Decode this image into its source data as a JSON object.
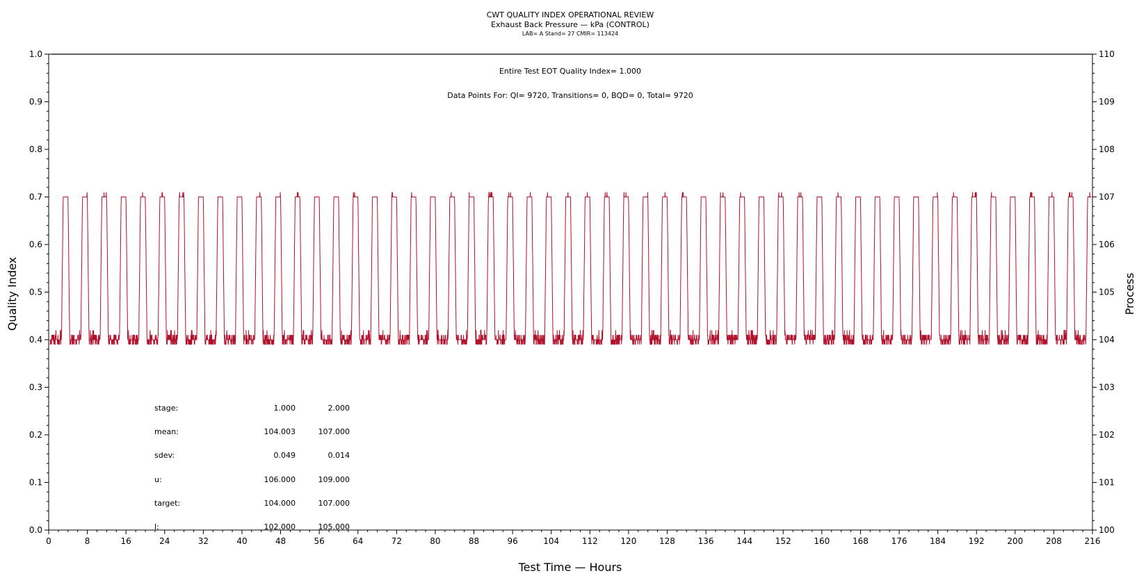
{
  "colors": {
    "series": "#b0102a",
    "frame": "#000000",
    "top_line": "#1a1a6e"
  },
  "chart_data": {
    "type": "line",
    "title": "CWT QUALITY INDEX OPERATIONAL REVIEW",
    "subtitle": "Exhaust Back Pressure — kPa (CONTROL)",
    "subtitle2": "LAB= A Stand= 27 CMIR= 113424",
    "xlabel": "Test Time — Hours",
    "ylabel_left": "Quality Index",
    "ylabel_right": "Process",
    "xlim": [
      0,
      216
    ],
    "ylim_left": [
      0.0,
      1.0
    ],
    "ylim_right": [
      100,
      110
    ],
    "x_ticks": [
      "0",
      "8",
      "16",
      "24",
      "32",
      "40",
      "48",
      "56",
      "64",
      "72",
      "80",
      "88",
      "96",
      "104",
      "112",
      "120",
      "128",
      "136",
      "144",
      "152",
      "160",
      "168",
      "176",
      "184",
      "192",
      "200",
      "208",
      "216"
    ],
    "y_left_ticks": [
      "0.0",
      "0.1",
      "0.2",
      "0.3",
      "0.4",
      "0.5",
      "0.6",
      "0.7",
      "0.8",
      "0.9",
      "1.0"
    ],
    "y_right_ticks": [
      "100",
      "101",
      "102",
      "103",
      "104",
      "105",
      "106",
      "107",
      "108",
      "109",
      "110"
    ],
    "quality_index": {
      "x": [
        0,
        216
      ],
      "y": [
        1.0,
        1.0
      ]
    },
    "annotations": {
      "eot": "Entire Test EOT Quality Index=   1.000",
      "points": "Data Points For: QI=  9720, Transitions=      0, BQD=      0, Total=   9720"
    },
    "process_series": {
      "name": "Process",
      "cycle_hours": 4,
      "stage1_level": 104,
      "stage2_level": 107,
      "stage1_hours": 3,
      "stage2_hours": 1
    },
    "stats_table": {
      "rows": [
        {
          "label": "stage:",
          "v1": "1.000",
          "v2": "2.000"
        },
        {
          "label": "mean:",
          "v1": "104.003",
          "v2": "107.000"
        },
        {
          "label": "sdev:",
          "v1": "0.049",
          "v2": "0.014"
        },
        {
          "label": "u:",
          "v1": "106.000",
          "v2": "109.000"
        },
        {
          "label": "target:",
          "v1": "104.000",
          "v2": "107.000"
        },
        {
          "label": "l:",
          "v1": "102.000",
          "v2": "105.000"
        }
      ]
    }
  }
}
